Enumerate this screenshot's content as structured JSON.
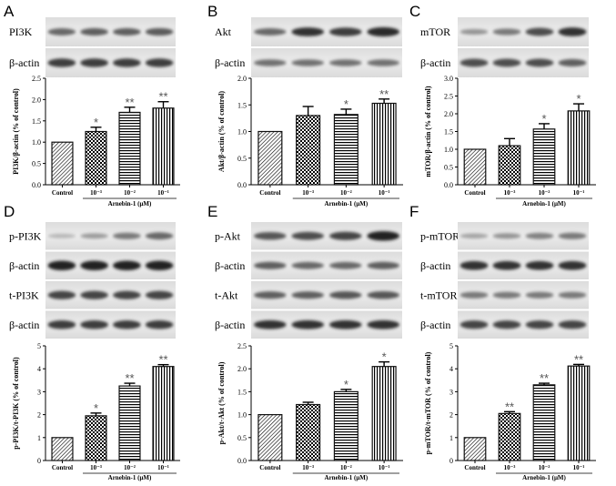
{
  "figure": {
    "panels": [
      {
        "letter": "A",
        "blots": [
          "PI3K",
          "β-actin"
        ]
      },
      {
        "letter": "B",
        "blots": [
          "Akt",
          "β-actin"
        ]
      },
      {
        "letter": "C",
        "blots": [
          "mTOR",
          "β-actin"
        ]
      },
      {
        "letter": "D",
        "blots": [
          "p-PI3K",
          "β-actin",
          "t-PI3K",
          "β-actin"
        ]
      },
      {
        "letter": "E",
        "blots": [
          "p-Akt",
          "β-actin",
          "t-Akt",
          "β-actin"
        ]
      },
      {
        "letter": "F",
        "blots": [
          "p-mTOR",
          "β-actin",
          "t-mTOR",
          "β-actin"
        ]
      }
    ],
    "colors": {
      "axis": "#000000",
      "bar_edge": "#111111",
      "blot_band": "#2a2a2a",
      "blot_bg": "#e8e8e8",
      "significance": "#555555"
    },
    "bar_patterns": [
      "hatched",
      "checkered",
      "horizontal-stripes",
      "vertical-stripes"
    ]
  },
  "chart_data": [
    {
      "type": "bar",
      "panel": "A",
      "categories": [
        "Control",
        "10⁻³",
        "10⁻²",
        "10⁻¹"
      ],
      "values": [
        1.0,
        1.25,
        1.7,
        1.8
      ],
      "errors": [
        0,
        0.1,
        0.12,
        0.15
      ],
      "significance": [
        "",
        "*",
        "**",
        "**"
      ],
      "ylabel": "PI3K/β-actin (% of control)",
      "xlabel": "Arnebin-1 (μM)",
      "ylim": [
        0,
        2.5
      ],
      "yticks": [
        "0.0",
        "0.5",
        "1.0",
        "1.5",
        "2.0",
        "2.5"
      ]
    },
    {
      "type": "bar",
      "panel": "B",
      "categories": [
        "Control",
        "10⁻³",
        "10⁻²",
        "10⁻¹"
      ],
      "values": [
        1.0,
        1.3,
        1.32,
        1.53
      ],
      "errors": [
        0,
        0.17,
        0.1,
        0.08
      ],
      "significance": [
        "",
        "",
        "*",
        "**"
      ],
      "ylabel": "Akt/β-actin (% of control)",
      "xlabel": "Arnebin-1 (μM)",
      "ylim": [
        0,
        2.0
      ],
      "yticks": [
        "0.0",
        "0.5",
        "1.0",
        "1.5",
        "2.0"
      ]
    },
    {
      "type": "bar",
      "panel": "C",
      "categories": [
        "Control",
        "10⁻³",
        "10⁻²",
        "10⁻¹"
      ],
      "values": [
        1.0,
        1.1,
        1.57,
        2.08
      ],
      "errors": [
        0,
        0.2,
        0.15,
        0.2
      ],
      "significance": [
        "",
        "",
        "*",
        "*"
      ],
      "ylabel": "mTOR/β-actin (% of control)",
      "xlabel": "Arnebin-1 (μM)",
      "ylim": [
        0,
        3.0
      ],
      "yticks": [
        "0.0",
        "0.5",
        "1.0",
        "1.5",
        "2.0",
        "2.5",
        "3.0"
      ]
    },
    {
      "type": "bar",
      "panel": "D",
      "categories": [
        "Control",
        "10⁻³",
        "10⁻²",
        "10⁻¹"
      ],
      "values": [
        1.0,
        1.95,
        3.25,
        4.1
      ],
      "errors": [
        0,
        0.12,
        0.12,
        0.08
      ],
      "significance": [
        "",
        "*",
        "**",
        "**"
      ],
      "ylabel": "p-PI3K/t-PI3K (% of control)",
      "xlabel": "Arnebin-1 (μM)",
      "ylim": [
        0,
        5
      ],
      "yticks": [
        "0",
        "1",
        "2",
        "3",
        "4",
        "5"
      ]
    },
    {
      "type": "bar",
      "panel": "E",
      "categories": [
        "Control",
        "10⁻³",
        "10⁻²",
        "10⁻¹"
      ],
      "values": [
        1.0,
        1.22,
        1.5,
        2.05
      ],
      "errors": [
        0,
        0.05,
        0.05,
        0.1
      ],
      "significance": [
        "",
        "",
        "*",
        "*"
      ],
      "ylabel": "p-Akt/t-Akt (% of control)",
      "xlabel": "Arnebin-1 (μM)",
      "ylim": [
        0,
        2.5
      ],
      "yticks": [
        "0.0",
        "0.5",
        "1.0",
        "1.5",
        "2.0",
        "2.5"
      ]
    },
    {
      "type": "bar",
      "panel": "F",
      "categories": [
        "Control",
        "10⁻³",
        "10⁻²",
        "10⁻¹"
      ],
      "values": [
        1.0,
        2.05,
        3.3,
        4.12
      ],
      "errors": [
        0,
        0.08,
        0.07,
        0.07
      ],
      "significance": [
        "",
        "**",
        "**",
        "**"
      ],
      "ylabel": "p-mTOR/t-mTOR (% of control)",
      "xlabel": "Arnebin-1 (μM)",
      "ylim": [
        0,
        5
      ],
      "yticks": [
        "0",
        "1",
        "2",
        "3",
        "4",
        "5"
      ]
    }
  ]
}
